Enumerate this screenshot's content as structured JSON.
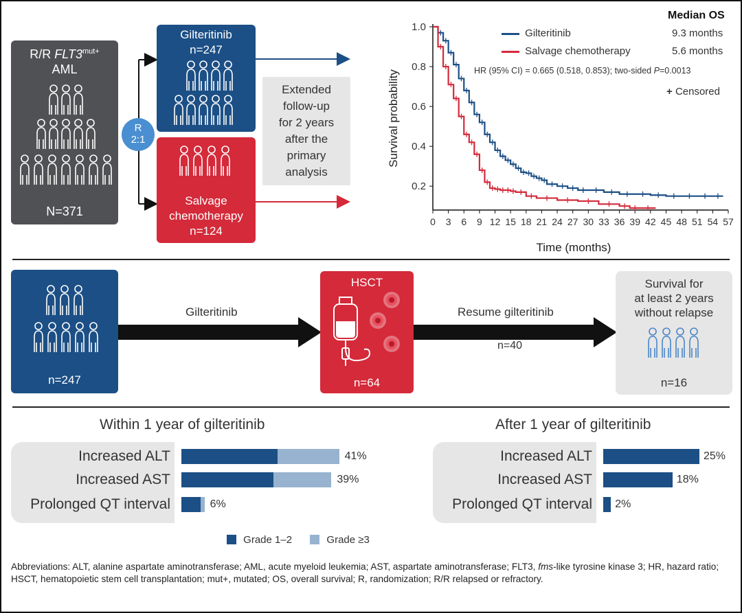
{
  "top": {
    "population_box": {
      "title_line1": "R/R",
      "title_flt3": "FLT3",
      "title_sup": "mut+",
      "title_line2": "AML",
      "n": "N=371"
    },
    "randomization": {
      "line1": "R",
      "line2": "2:1"
    },
    "arm_a": {
      "label": "Gilteritinib",
      "n": "n=247"
    },
    "arm_b": {
      "label_line1": "Salvage",
      "label_line2": "chemotherapy",
      "n": "n=124"
    },
    "followup": [
      "Extended",
      "follow-up",
      "for 2 years",
      "after the",
      "primary",
      "analysis"
    ]
  },
  "km_header": {
    "median_os_title": "Median OS",
    "legend": [
      {
        "name": "Gilteritinib",
        "value": "9.3 months",
        "color": "#1c4f85"
      },
      {
        "name": "Salvage chemotherapy",
        "value": "5.6 months",
        "color": "#d42a3a"
      }
    ],
    "hr_text": "HR (95% CI) = 0.665 (0.518, 0.853); two-sided ",
    "hr_p_italic": "P",
    "hr_p_value": "=0.0013",
    "censored_symbol": "+",
    "censored_label": "Censored"
  },
  "chart_data": {
    "type": "line",
    "xlabel": "Time (months)",
    "ylabel": "Survival probability",
    "xlim": [
      0,
      57
    ],
    "ylim": [
      0.08,
      1.0
    ],
    "x_ticks": [
      0,
      3,
      6,
      9,
      12,
      15,
      18,
      21,
      24,
      27,
      30,
      33,
      36,
      39,
      42,
      45,
      48,
      51,
      54,
      57
    ],
    "y_ticks": [
      1.0,
      0.8,
      0.6,
      0.4,
      0.2
    ],
    "y_tick_labels": [
      "1.0",
      "0.8",
      "0.6",
      "0.4",
      "0.2"
    ],
    "series": [
      {
        "name": "Gilteritinib",
        "color": "#1c4f85",
        "x": [
          0,
          1,
          2,
          3,
          4,
          5,
          6,
          7,
          8,
          9,
          10,
          11,
          12,
          13,
          14,
          15,
          16,
          17,
          18,
          19,
          20,
          21,
          22,
          24,
          26,
          28,
          30,
          33,
          36,
          39,
          42,
          45,
          48,
          51,
          54,
          56
        ],
        "y": [
          1.0,
          0.97,
          0.93,
          0.87,
          0.81,
          0.74,
          0.68,
          0.62,
          0.56,
          0.52,
          0.46,
          0.42,
          0.38,
          0.35,
          0.33,
          0.31,
          0.29,
          0.27,
          0.265,
          0.25,
          0.24,
          0.23,
          0.21,
          0.2,
          0.19,
          0.18,
          0.18,
          0.17,
          0.16,
          0.16,
          0.155,
          0.15,
          0.15,
          0.15,
          0.15,
          0.15
        ]
      },
      {
        "name": "Salvage chemotherapy",
        "color": "#d42a3a",
        "x": [
          0,
          1,
          2,
          3,
          4,
          5,
          6,
          7,
          8,
          9,
          10,
          11,
          12,
          13,
          14,
          15,
          16,
          18,
          20,
          24,
          28,
          32,
          36,
          38,
          40,
          43
        ],
        "y": [
          1.0,
          0.9,
          0.8,
          0.71,
          0.64,
          0.55,
          0.46,
          0.42,
          0.36,
          0.28,
          0.22,
          0.19,
          0.185,
          0.18,
          0.18,
          0.175,
          0.17,
          0.15,
          0.14,
          0.13,
          0.125,
          0.11,
          0.1,
          0.09,
          0.09,
          0.09
        ]
      }
    ]
  },
  "middle": {
    "start_box": {
      "n": "n=247"
    },
    "arrow1_label": "Gilteritinib",
    "hsct_box": {
      "title": "HSCT",
      "n": "n=64"
    },
    "arrow2_label": "Resume gilteritinib",
    "arrow2_n": "n=40",
    "end_box": {
      "line1": "Survival for",
      "line2": "at least 2 years",
      "line3": "without relapse",
      "n": "n=16"
    }
  },
  "adverse_events": {
    "panels": [
      {
        "title": "Within 1 year of gilteritinib",
        "rows": [
          {
            "label": "Increased ALT",
            "pct": "41%",
            "total": 41,
            "grade_1_2": 25,
            "grade_3": 16
          },
          {
            "label": "Increased AST",
            "pct": "39%",
            "total": 39,
            "grade_1_2": 24,
            "grade_3": 15
          },
          {
            "label": "Prolonged QT interval",
            "pct": "6%",
            "total": 6,
            "grade_1_2": 5,
            "grade_3": 1
          }
        ]
      },
      {
        "title": "After 1 year of gilteritinib",
        "rows": [
          {
            "label": "Increased ALT",
            "pct": "25%",
            "total": 25,
            "grade_1_2": 25,
            "grade_3": 0
          },
          {
            "label": "Increased AST",
            "pct": "18%",
            "total": 18,
            "grade_1_2": 18,
            "grade_3": 0
          },
          {
            "label": "Prolonged QT interval",
            "pct": "2%",
            "total": 2,
            "grade_1_2": 2,
            "grade_3": 0
          }
        ]
      }
    ],
    "legend": [
      {
        "label": "Grade 1–2",
        "color": "#1c4f85"
      },
      {
        "label": "Grade ≥3",
        "color": "#97b3cf"
      }
    ]
  },
  "footnote": {
    "part1": "Abbreviations: ALT, alanine aspartate aminotransferase; AML, acute myeloid leukemia; AST, aspartate aminotransferase; FLT3, ",
    "italic": "fms",
    "part2": "-like tyrosine kinase 3; HR, hazard ratio; HSCT, hematopoietic stem cell transplantation; mut+, mutated; OS, overall survival; R, randomization; R/R relapsed or refractory."
  }
}
